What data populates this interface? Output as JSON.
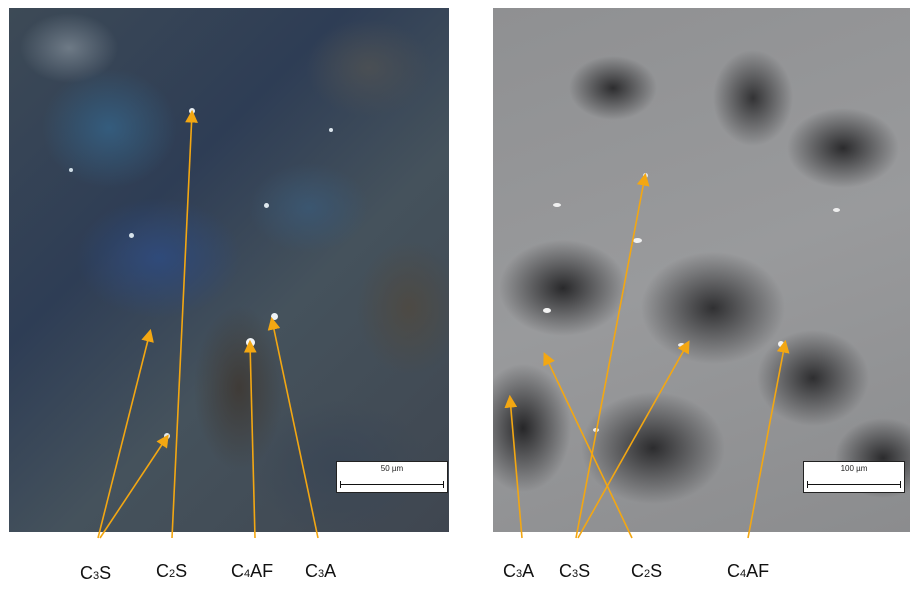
{
  "panels": [
    {
      "scale_bar": "50 µm",
      "labels": [
        "C3S",
        "C2S",
        "C4AF",
        "C3A"
      ]
    },
    {
      "scale_bar": "100 µm",
      "labels": [
        "C3A",
        "C3S",
        "C2S",
        "C4AF"
      ]
    }
  ],
  "colors": {
    "arrow": "#f3a712",
    "label_text": "#111111"
  },
  "label_parts": {
    "left_c3s": {
      "pre": "C",
      "sub": "3",
      "post": "S"
    },
    "left_c2s": {
      "pre": "C",
      "sub": "2",
      "post": "S"
    },
    "left_c4af": {
      "pre": "C",
      "sub": "4",
      "post": "AF"
    },
    "left_c3a": {
      "pre": "C",
      "sub": "3",
      "post": "A"
    },
    "right_c3a": {
      "pre": "C",
      "sub": "3",
      "post": "A"
    },
    "right_c3s": {
      "pre": "C",
      "sub": "3",
      "post": "S"
    },
    "right_c2s": {
      "pre": "C",
      "sub": "2",
      "post": "S"
    },
    "right_c4af": {
      "pre": "C",
      "sub": "4",
      "post": "AF"
    }
  }
}
